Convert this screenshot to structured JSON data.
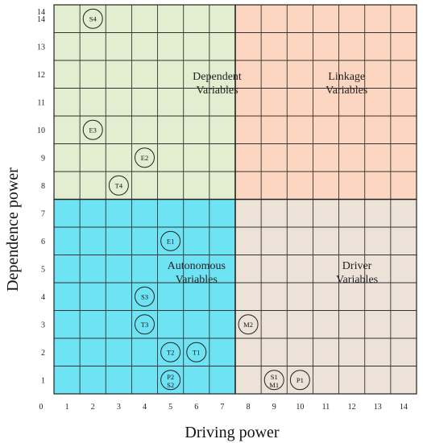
{
  "chart_data": {
    "type": "scatter",
    "title": "",
    "xlabel": "Driving power",
    "ylabel": "Dependence power",
    "xlim": [
      0,
      14
    ],
    "ylim": [
      0,
      14
    ],
    "x_ticks": [
      "0",
      "1",
      "2",
      "3",
      "4",
      "5",
      "6",
      "7",
      "8",
      "9",
      "10",
      "11",
      "12",
      "13",
      "14"
    ],
    "y_ticks": [
      "1",
      "2",
      "3",
      "4",
      "5",
      "6",
      "7",
      "8",
      "9",
      "10",
      "11",
      "12",
      "13",
      "14"
    ],
    "grid": true,
    "divider": {
      "x": 7,
      "y": 7
    },
    "quadrants": [
      {
        "id": "dependent",
        "label_line1": "Dependent",
        "label_line2": "Variables",
        "color": "#e2eecf",
        "x_range": [
          0,
          7
        ],
        "y_range": [
          7,
          14
        ]
      },
      {
        "id": "linkage",
        "label_line1": "Linkage",
        "label_line2": "Variables",
        "color": "#fcd6c0",
        "x_range": [
          7,
          14
        ],
        "y_range": [
          7,
          14
        ]
      },
      {
        "id": "autonomous",
        "label_line1": "Autonomous",
        "label_line2": "Variables",
        "color": "#6ee3f4",
        "x_range": [
          0,
          7
        ],
        "y_range": [
          0,
          7
        ]
      },
      {
        "id": "driver",
        "label_line1": "Driver",
        "label_line2": "Variables",
        "color": "#ede2d8",
        "x_range": [
          7,
          14
        ],
        "y_range": [
          0,
          7
        ]
      }
    ],
    "points": [
      {
        "label": "S4",
        "x": 1,
        "y": 14
      },
      {
        "label": "E3",
        "x": 1,
        "y": 10
      },
      {
        "label": "E2",
        "x": 3,
        "y": 9
      },
      {
        "label": "T4",
        "x": 2,
        "y": 8
      },
      {
        "label": "E1",
        "x": 4,
        "y": 6
      },
      {
        "label": "S3",
        "x": 3,
        "y": 4
      },
      {
        "label": "T3",
        "x": 3,
        "y": 3
      },
      {
        "label": "M2",
        "x": 7,
        "y": 3
      },
      {
        "label": "T2",
        "x": 4,
        "y": 2
      },
      {
        "label": "T1",
        "x": 5,
        "y": 2
      },
      {
        "label": "P2",
        "label2": "S2",
        "x": 4,
        "y": 1
      },
      {
        "label": "S1",
        "label2": "M1",
        "x": 8,
        "y": 1
      },
      {
        "label": "P1",
        "x": 9,
        "y": 1
      }
    ]
  }
}
